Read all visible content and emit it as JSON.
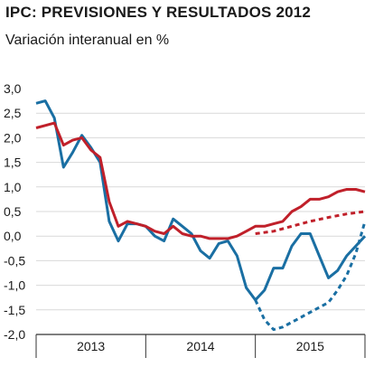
{
  "chart_data": {
    "type": "line",
    "title": "IPC: PREVISIONES Y RESULTADOS 2012",
    "subtitle": "Variación interanual en %",
    "ylim": [
      -2.0,
      3.0
    ],
    "yticks": [
      "3,0",
      "2,5",
      "2,0",
      "1,5",
      "1,0",
      "0,5",
      "0,0",
      "-0,5",
      "-1,0",
      "-1,5",
      "-2,0"
    ],
    "ytick_values": [
      3.0,
      2.5,
      2.0,
      1.5,
      1.0,
      0.5,
      0.0,
      -0.5,
      -1.0,
      -1.5,
      -2.0
    ],
    "xlim": [
      0,
      36
    ],
    "x_categories": [
      "2013",
      "2014",
      "2015"
    ],
    "grid": "horizontal",
    "colors": {
      "blue": "#1a6fa3",
      "red": "#c0202a",
      "grid": "#d9d9d9",
      "axis": "#333333"
    },
    "series": [
      {
        "color": "#1a6fa3",
        "dashed": false,
        "points": [
          [
            0,
            2.7
          ],
          [
            1,
            2.75
          ],
          [
            2,
            2.4
          ],
          [
            3,
            1.4
          ],
          [
            4,
            1.7
          ],
          [
            5,
            2.05
          ],
          [
            6,
            1.8
          ],
          [
            7,
            1.5
          ],
          [
            8,
            0.3
          ],
          [
            9,
            -0.1
          ],
          [
            10,
            0.25
          ],
          [
            11,
            0.25
          ],
          [
            12,
            0.2
          ],
          [
            13,
            0.0
          ],
          [
            14,
            -0.1
          ],
          [
            15,
            0.35
          ],
          [
            16,
            0.2
          ],
          [
            17,
            0.05
          ],
          [
            18,
            -0.3
          ],
          [
            19,
            -0.45
          ],
          [
            20,
            -0.15
          ],
          [
            21,
            -0.1
          ],
          [
            22,
            -0.4
          ],
          [
            23,
            -1.05
          ],
          [
            24,
            -1.3
          ],
          [
            25,
            -1.1
          ],
          [
            26,
            -0.65
          ],
          [
            27,
            -0.65
          ],
          [
            28,
            -0.2
          ],
          [
            29,
            0.05
          ],
          [
            30,
            0.05
          ],
          [
            31,
            -0.4
          ],
          [
            32,
            -0.85
          ],
          [
            33,
            -0.7
          ],
          [
            34,
            -0.4
          ],
          [
            35,
            -0.2
          ],
          [
            36,
            0.0
          ]
        ]
      },
      {
        "color": "#c0202a",
        "dashed": false,
        "points": [
          [
            0,
            2.2
          ],
          [
            1,
            2.25
          ],
          [
            2,
            2.3
          ],
          [
            3,
            1.85
          ],
          [
            4,
            1.95
          ],
          [
            5,
            2.0
          ],
          [
            6,
            1.75
          ],
          [
            7,
            1.6
          ],
          [
            8,
            0.7
          ],
          [
            9,
            0.2
          ],
          [
            10,
            0.3
          ],
          [
            11,
            0.25
          ],
          [
            12,
            0.2
          ],
          [
            13,
            0.1
          ],
          [
            14,
            0.05
          ],
          [
            15,
            0.2
          ],
          [
            16,
            0.05
          ],
          [
            17,
            0.0
          ],
          [
            18,
            0.0
          ],
          [
            19,
            -0.05
          ],
          [
            20,
            -0.05
          ],
          [
            21,
            -0.05
          ],
          [
            22,
            0.0
          ],
          [
            23,
            0.1
          ],
          [
            24,
            0.2
          ],
          [
            25,
            0.2
          ],
          [
            26,
            0.25
          ],
          [
            27,
            0.3
          ],
          [
            28,
            0.5
          ],
          [
            29,
            0.6
          ],
          [
            30,
            0.75
          ],
          [
            31,
            0.75
          ],
          [
            32,
            0.8
          ],
          [
            33,
            0.9
          ],
          [
            34,
            0.95
          ],
          [
            35,
            0.95
          ],
          [
            36,
            0.9
          ]
        ]
      },
      {
        "color": "#c0202a",
        "dashed": true,
        "points": [
          [
            24,
            0.05
          ],
          [
            26,
            0.1
          ],
          [
            28,
            0.2
          ],
          [
            30,
            0.3
          ],
          [
            32,
            0.38
          ],
          [
            34,
            0.45
          ],
          [
            36,
            0.5
          ]
        ]
      },
      {
        "color": "#1a6fa3",
        "dashed": true,
        "points": [
          [
            24,
            -1.3
          ],
          [
            25,
            -1.7
          ],
          [
            26,
            -1.9
          ],
          [
            27,
            -1.85
          ],
          [
            28,
            -1.75
          ],
          [
            29,
            -1.65
          ],
          [
            30,
            -1.55
          ],
          [
            31,
            -1.45
          ],
          [
            32,
            -1.35
          ],
          [
            33,
            -1.1
          ],
          [
            34,
            -0.8
          ],
          [
            35,
            -0.35
          ],
          [
            36,
            0.3
          ]
        ]
      }
    ]
  }
}
